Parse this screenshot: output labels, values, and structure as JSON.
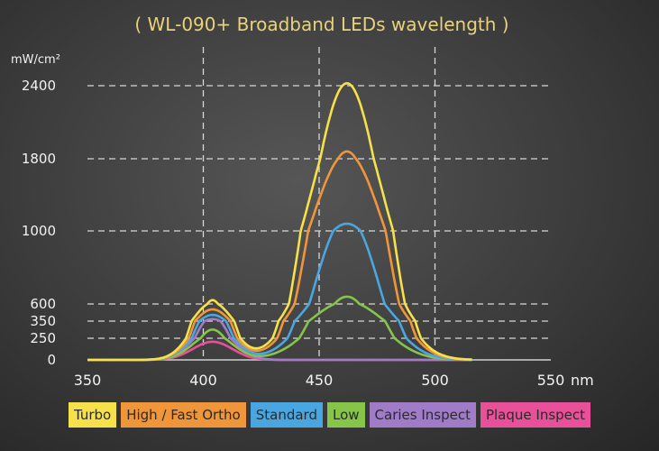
{
  "chart_data": {
    "type": "line",
    "title": "( WL-090+  Broadband LEDs wavelength )",
    "ylabel": "mW/cm²",
    "xlabel_unit": "nm",
    "x_ticks": [
      350,
      400,
      450,
      500,
      550
    ],
    "y_ticks": [
      0,
      250,
      350,
      600,
      1000,
      1800,
      2400
    ],
    "xlim": [
      350,
      550
    ],
    "ylim": [
      0,
      2400
    ],
    "grid": true,
    "legend_position": "bottom",
    "series": [
      {
        "name": "Turbo",
        "color": "#f6e14a",
        "peak1": 620,
        "peak2": 2420
      },
      {
        "name": "High / Fast Ortho",
        "color": "#f0963a",
        "peak1": 520,
        "peak2": 1860
      },
      {
        "name": "Standard",
        "color": "#4aa6e0",
        "peak1": 440,
        "peak2": 1080
      },
      {
        "name": "Low",
        "color": "#86c44a",
        "peak1": 300,
        "peak2": 640
      },
      {
        "name": "Caries Inspect",
        "color": "#a07cc8",
        "peak1": 380,
        "peak2": 0
      },
      {
        "name": "Plaque Inspect",
        "color": "#e8509a",
        "peak1": 210,
        "peak2": 0
      }
    ]
  }
}
